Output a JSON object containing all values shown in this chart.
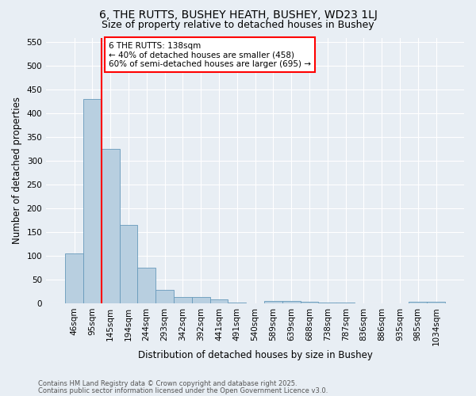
{
  "title1": "6, THE RUTTS, BUSHEY HEATH, BUSHEY, WD23 1LJ",
  "title2": "Size of property relative to detached houses in Bushey",
  "xlabel": "Distribution of detached houses by size in Bushey",
  "ylabel": "Number of detached properties",
  "categories": [
    "46sqm",
    "95sqm",
    "145sqm",
    "194sqm",
    "244sqm",
    "293sqm",
    "342sqm",
    "392sqm",
    "441sqm",
    "491sqm",
    "540sqm",
    "589sqm",
    "639sqm",
    "688sqm",
    "738sqm",
    "787sqm",
    "836sqm",
    "886sqm",
    "935sqm",
    "985sqm",
    "1034sqm"
  ],
  "values": [
    105,
    430,
    325,
    165,
    75,
    28,
    13,
    13,
    9,
    1,
    0,
    5,
    5,
    3,
    2,
    1,
    0,
    0,
    0,
    3,
    4
  ],
  "bar_color": "#b8cfe0",
  "bar_edge_color": "#6699bb",
  "vline_x": 1.5,
  "vline_color": "red",
  "annotation_text": "6 THE RUTTS: 138sqm\n← 40% of detached houses are smaller (458)\n60% of semi-detached houses are larger (695) →",
  "annotation_box_color": "white",
  "annotation_box_edge": "red",
  "footer1": "Contains HM Land Registry data © Crown copyright and database right 2025.",
  "footer2": "Contains public sector information licensed under the Open Government Licence v3.0.",
  "ylim": [
    0,
    560
  ],
  "yticks": [
    0,
    50,
    100,
    150,
    200,
    250,
    300,
    350,
    400,
    450,
    500,
    550
  ],
  "bg_color": "#e8eef4",
  "grid_color": "white",
  "title1_fontsize": 10,
  "title2_fontsize": 9,
  "tick_fontsize": 7.5,
  "label_fontsize": 8.5,
  "footer_fontsize": 6,
  "annot_fontsize": 7.5
}
